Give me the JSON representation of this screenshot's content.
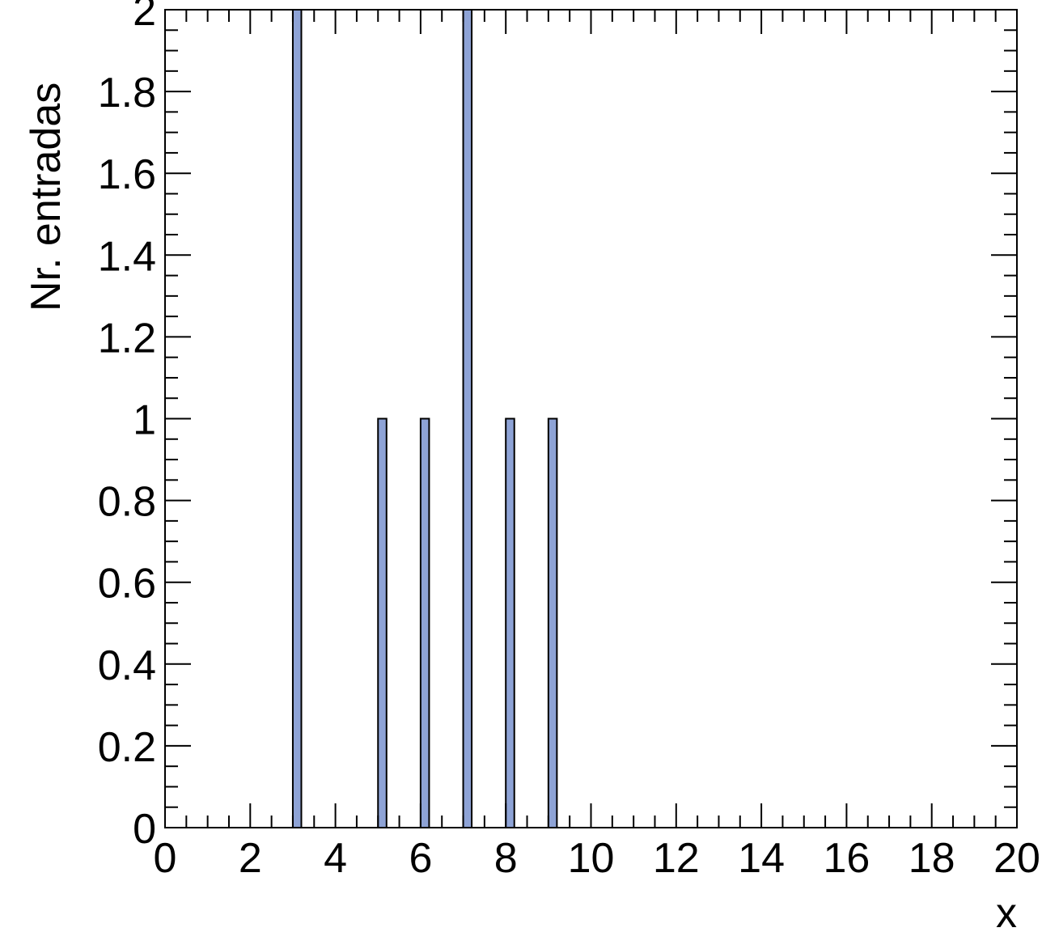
{
  "chart_data": {
    "type": "bar",
    "title": "",
    "xlabel": "x",
    "ylabel": "Nr. entradas",
    "xlim": [
      0,
      20
    ],
    "ylim": [
      0,
      2
    ],
    "x_ticks": [
      "0",
      "2",
      "4",
      "6",
      "8",
      "10",
      "12",
      "14",
      "16",
      "18",
      "20"
    ],
    "y_ticks": [
      "0",
      "0.2",
      "0.4",
      "0.6",
      "0.8",
      "1",
      "1.2",
      "1.4",
      "1.6",
      "1.8",
      "2"
    ],
    "bar_color": "#8ea3d6",
    "edge_color": "#000000",
    "bars": [
      {
        "x": 3.1,
        "value": 2
      },
      {
        "x": 5.1,
        "value": 1
      },
      {
        "x": 6.1,
        "value": 1
      },
      {
        "x": 7.1,
        "value": 2
      },
      {
        "x": 8.1,
        "value": 1
      },
      {
        "x": 9.1,
        "value": 1
      }
    ],
    "grid": false,
    "legend": "none"
  }
}
